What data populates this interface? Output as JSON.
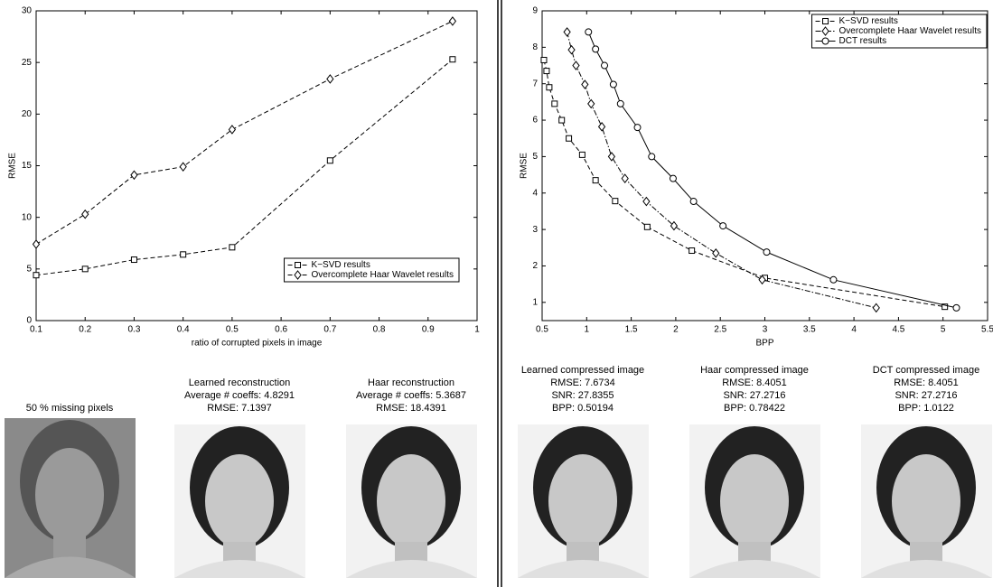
{
  "chart_data": [
    {
      "type": "line",
      "xlabel": "ratio of corrupted pixels in image",
      "ylabel": "RMSE",
      "xlim": [
        0.1,
        1
      ],
      "xticks": [
        0.1,
        0.2,
        0.3,
        0.4,
        0.5,
        0.6,
        0.7,
        0.8,
        0.9,
        1
      ],
      "ylim": [
        0,
        30
      ],
      "yticks": [
        0,
        5,
        10,
        15,
        20,
        25,
        30
      ],
      "grid": false,
      "legend": "lower right",
      "series": [
        {
          "name": "K−SVD results",
          "color": "#000000",
          "marker": "square",
          "line_style": "dashed",
          "x": [
            0.1,
            0.2,
            0.3,
            0.4,
            0.5,
            0.7,
            0.95
          ],
          "values": [
            4.4,
            5.0,
            5.9,
            6.4,
            7.1,
            15.5,
            25.3
          ]
        },
        {
          "name": "Overcomplete Haar Wavelet results",
          "color": "#000000",
          "marker": "diamond",
          "line_style": "dashed",
          "x": [
            0.1,
            0.2,
            0.3,
            0.4,
            0.5,
            0.7,
            0.95
          ],
          "values": [
            7.4,
            10.3,
            14.1,
            14.9,
            18.5,
            23.4,
            29.0
          ]
        }
      ]
    },
    {
      "type": "line",
      "xlabel": "BPP",
      "ylabel": "RMSE",
      "xlim": [
        0.5,
        5.5
      ],
      "xticks": [
        0.5,
        1,
        1.5,
        2,
        2.5,
        3,
        3.5,
        4,
        4.5,
        5,
        5.5
      ],
      "ylim": [
        0.5,
        9
      ],
      "yticks": [
        1,
        2,
        3,
        4,
        5,
        6,
        7,
        8,
        9
      ],
      "grid": false,
      "legend": "upper right",
      "series": [
        {
          "name": "K−SVD results",
          "color": "#000000",
          "marker": "square",
          "line_style": "dashed",
          "x": [
            0.52,
            0.55,
            0.58,
            0.64,
            0.72,
            0.8,
            0.95,
            1.1,
            1.32,
            1.68,
            2.18,
            3.0,
            5.02
          ],
          "values": [
            7.65,
            7.35,
            6.9,
            6.45,
            6.0,
            5.5,
            5.05,
            4.35,
            3.78,
            3.07,
            2.42,
            1.67,
            0.88
          ]
        },
        {
          "name": "Overcomplete Haar Wavelet results",
          "color": "#000000",
          "marker": "diamond",
          "line_style": "dashdot",
          "x": [
            0.78,
            0.83,
            0.88,
            0.98,
            1.05,
            1.17,
            1.28,
            1.43,
            1.67,
            1.98,
            2.45,
            2.97,
            4.25
          ],
          "values": [
            8.42,
            7.93,
            7.5,
            6.98,
            6.45,
            5.82,
            5.0,
            4.4,
            3.77,
            3.1,
            2.35,
            1.62,
            0.85
          ]
        },
        {
          "name": "DCT results",
          "color": "#000000",
          "marker": "circle",
          "line_style": "solid",
          "x": [
            1.02,
            1.1,
            1.2,
            1.3,
            1.38,
            1.57,
            1.73,
            1.97,
            2.2,
            2.53,
            3.02,
            3.77,
            5.15
          ],
          "values": [
            8.42,
            7.95,
            7.5,
            6.98,
            6.45,
            5.8,
            5.0,
            4.4,
            3.77,
            3.1,
            2.38,
            1.62,
            0.85
          ]
        }
      ]
    }
  ],
  "panels": [
    {
      "caption": [
        "50 % missing pixels"
      ]
    },
    {
      "caption": [
        "Learned reconstruction",
        "Average # coeffs: 4.8291",
        "RMSE: 7.1397"
      ]
    },
    {
      "caption": [
        "Haar reconstruction",
        "Average # coeffs: 5.3687",
        "RMSE: 18.4391"
      ]
    },
    {
      "caption": [
        "Learned compressed image",
        "RMSE: 7.6734",
        "SNR: 27.8355",
        "BPP: 0.50194"
      ]
    },
    {
      "caption": [
        "Haar compressed image",
        "RMSE: 8.4051",
        "SNR: 27.2716",
        "BPP: 0.78422"
      ]
    },
    {
      "caption": [
        "DCT compressed image",
        "RMSE: 8.4051",
        "SNR: 27.2716",
        "BPP: 1.0122"
      ]
    }
  ]
}
